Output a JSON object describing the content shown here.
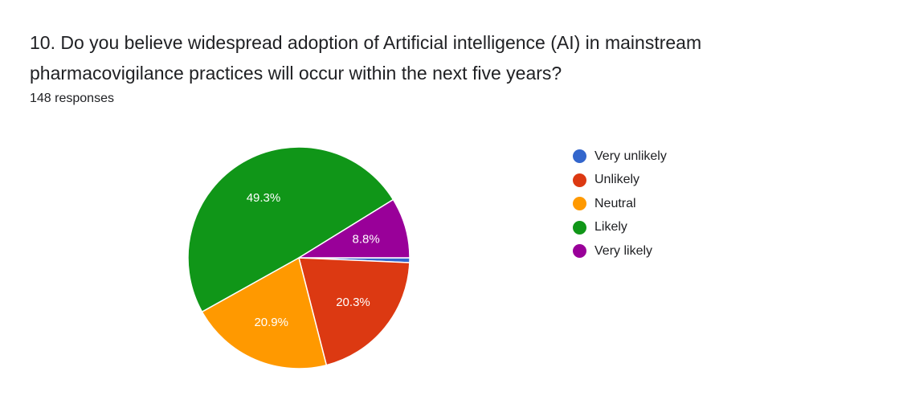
{
  "question": {
    "title": "10. Do you believe widespread adoption of Artificial intelligence (AI) in mainstream pharmacovigilance practices will occur within the next five years?",
    "responses": "148 responses"
  },
  "chart_data": {
    "type": "pie",
    "title": "10. Do you believe widespread adoption of Artificial intelligence (AI) in mainstream pharmacovigilance practices will occur within the next five years?",
    "legend_position": "right",
    "categories": [
      "Very unlikely",
      "Unlikely",
      "Neutral",
      "Likely",
      "Very likely"
    ],
    "values": [
      0.7,
      20.3,
      20.9,
      49.3,
      8.8
    ],
    "value_labels": [
      "",
      "20.3%",
      "20.9%",
      "49.3%",
      "8.8%"
    ],
    "colors": [
      "#3366cc",
      "#dc3912",
      "#ff9900",
      "#109618",
      "#990099"
    ],
    "start_angle_deg": 90,
    "direction": "clockwise"
  }
}
